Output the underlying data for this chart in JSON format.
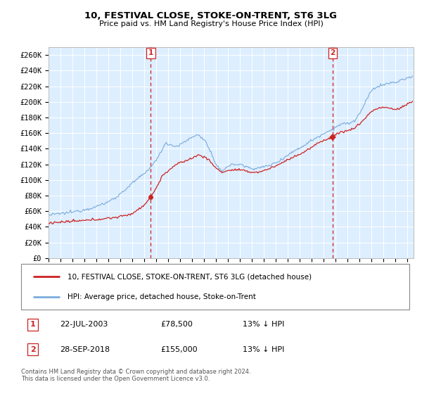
{
  "title": "10, FESTIVAL CLOSE, STOKE-ON-TRENT, ST6 3LG",
  "subtitle": "Price paid vs. HM Land Registry's House Price Index (HPI)",
  "ylabel_ticks": [
    "£0",
    "£20K",
    "£40K",
    "£60K",
    "£80K",
    "£100K",
    "£120K",
    "£140K",
    "£160K",
    "£180K",
    "£200K",
    "£220K",
    "£240K",
    "£260K"
  ],
  "ytick_values": [
    0,
    20000,
    40000,
    60000,
    80000,
    100000,
    120000,
    140000,
    160000,
    180000,
    200000,
    220000,
    240000,
    260000
  ],
  "ylim": [
    0,
    270000
  ],
  "xlim_start": 1995.0,
  "xlim_end": 2025.5,
  "vline1_x": 2003.55,
  "vline2_x": 2018.75,
  "sale1_x": 2003.55,
  "sale1_y": 78500,
  "sale2_x": 2018.75,
  "sale2_y": 155000,
  "hpi_color": "#7aabdb",
  "price_color": "#cc2222",
  "plot_bg_color": "#ddeeff",
  "legend_entry1": "10, FESTIVAL CLOSE, STOKE-ON-TRENT, ST6 3LG (detached house)",
  "legend_entry2": "HPI: Average price, detached house, Stoke-on-Trent",
  "annotation1_date": "22-JUL-2003",
  "annotation1_price": "£78,500",
  "annotation1_hpi": "13% ↓ HPI",
  "annotation2_date": "28-SEP-2018",
  "annotation2_price": "£155,000",
  "annotation2_hpi": "13% ↓ HPI",
  "footer": "Contains HM Land Registry data © Crown copyright and database right 2024.\nThis data is licensed under the Open Government Licence v3.0."
}
